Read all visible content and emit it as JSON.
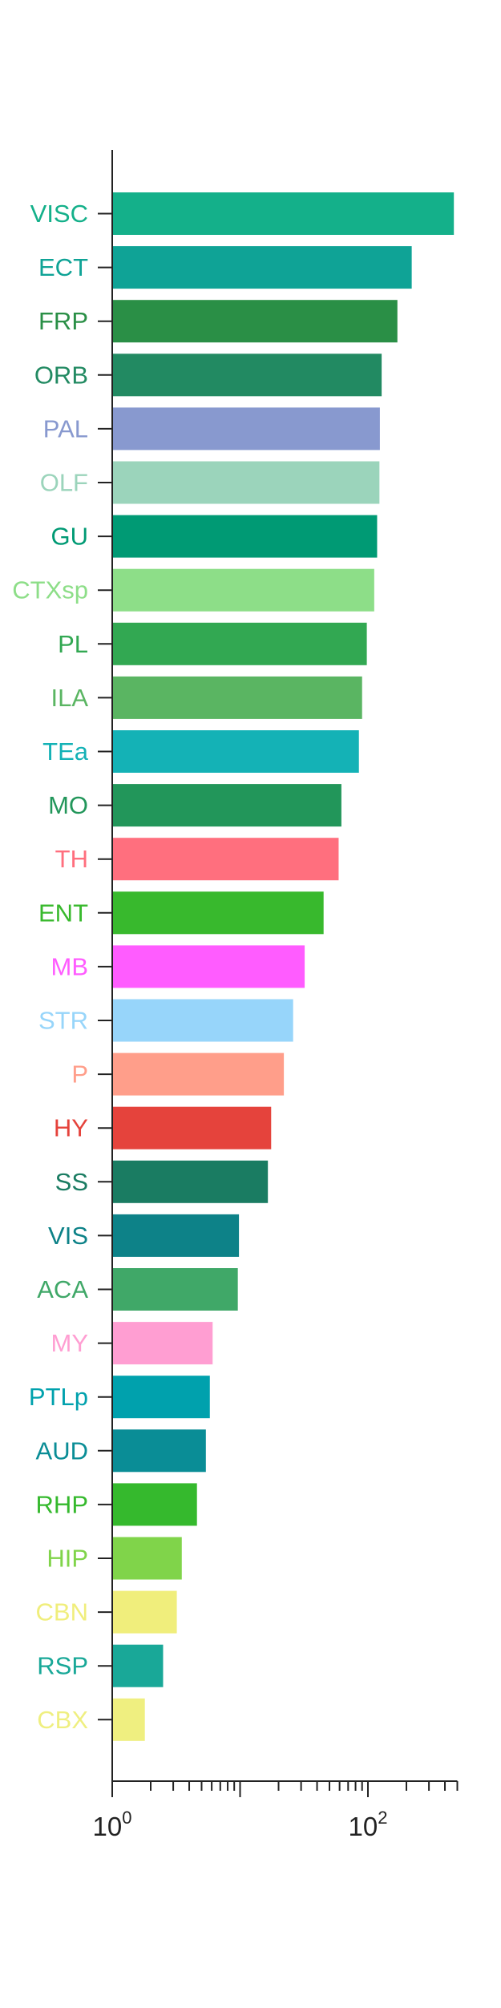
{
  "chart_data": {
    "type": "bar",
    "orientation": "horizontal",
    "title": "",
    "xlabel": "",
    "ylabel": "",
    "x_scale": "log",
    "xlim": [
      1,
      500
    ],
    "grid": false,
    "legend": "none",
    "x_tick_labels": [
      {
        "base": "10",
        "exp": "0",
        "value": 1
      },
      {
        "base": "10",
        "exp": "2",
        "value": 100
      }
    ],
    "categories": [
      "VISC",
      "ECT",
      "FRP",
      "ORB",
      "PAL",
      "OLF",
      "GU",
      "CTXsp",
      "PL",
      "ILA",
      "TEa",
      "MO",
      "TH",
      "ENT",
      "MB",
      "STR",
      "P",
      "HY",
      "SS",
      "VIS",
      "ACA",
      "MY",
      "PTLp",
      "AUD",
      "RHP",
      "HIP",
      "CBN",
      "RSP",
      "CBX"
    ],
    "values": [
      470,
      220,
      170,
      128,
      124,
      123,
      118,
      112,
      98,
      90,
      85,
      62,
      59,
      45,
      32,
      26,
      22,
      17.5,
      16.5,
      9.8,
      9.6,
      6.1,
      5.8,
      5.4,
      4.6,
      3.5,
      3.2,
      2.5,
      1.8
    ],
    "colors": [
      "#14b08a",
      "#0fa396",
      "#2a8f46",
      "#228a62",
      "#8899cf",
      "#9bd4bb",
      "#009a74",
      "#8dde88",
      "#32a852",
      "#5ab562",
      "#14b2b6",
      "#22965a",
      "#ff6f7e",
      "#38b92d",
      "#ff5cff",
      "#97d5fa",
      "#ff9e8a",
      "#e5433c",
      "#1a7c62",
      "#0d8288",
      "#40a868",
      "#ff9ed2",
      "#00a1ad",
      "#0a8d96",
      "#35b92d",
      "#80d44a",
      "#f0ee7c",
      "#19a898",
      "#efef80"
    ]
  }
}
